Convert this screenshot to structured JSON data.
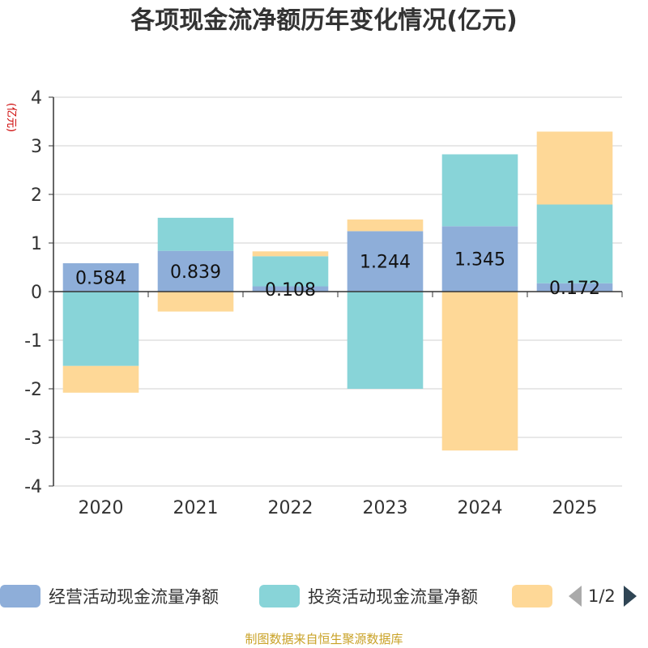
{
  "chart_data": {
    "type": "bar",
    "stacked": true,
    "title": "各项现金流净额历年变化情况(亿元)",
    "ylabel": "(亿元)",
    "xlabel": "",
    "ylim": [
      -4,
      4
    ],
    "yticks": [
      4,
      3,
      2,
      1,
      0,
      -1,
      -2,
      -3,
      -4
    ],
    "categories": [
      "2020",
      "2021",
      "2022",
      "2023",
      "2024",
      "2025"
    ],
    "grid": true,
    "series": [
      {
        "name": "经营活动现金流量净额",
        "color": "#8eaed9",
        "values": [
          0.584,
          0.839,
          0.108,
          1.244,
          1.345,
          0.172
        ],
        "data_labels": [
          "0.584",
          "0.839",
          "0.108",
          "1.244",
          "1.345",
          "0.172"
        ]
      },
      {
        "name": "投资活动现金流量净额",
        "color": "#88d4d8",
        "values": [
          -1.53,
          0.68,
          0.62,
          -2.0,
          1.48,
          1.62
        ]
      },
      {
        "name": "",
        "color": "#fed897",
        "values": [
          -0.55,
          -0.41,
          0.1,
          0.24,
          -3.27,
          1.5
        ]
      }
    ]
  },
  "legend": {
    "items": [
      {
        "label": "经营活动现金流量净额",
        "color": "#8eaed9"
      },
      {
        "label": "投资活动现金流量净额",
        "color": "#88d4d8"
      },
      {
        "label": "",
        "color": "#fed897"
      }
    ],
    "page_indicator": "1/2"
  },
  "source_note": "制图数据来自恒生聚源数据库"
}
